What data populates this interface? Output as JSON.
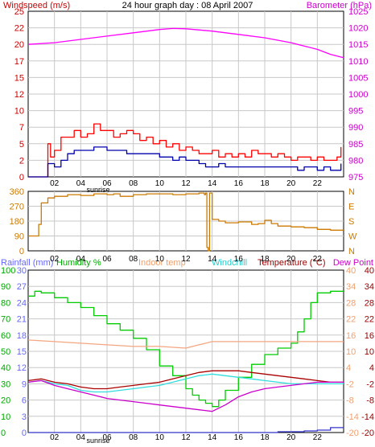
{
  "title": "24 hour graph day : 08 April 2007",
  "x_ticks": [
    "02",
    "04",
    "06",
    "08",
    "10",
    "12",
    "14",
    "16",
    "18",
    "20",
    "22"
  ],
  "sunrise_label": "sunrise",
  "colors": {
    "wind": "#ff0000",
    "gust": "#ff0000",
    "windavg": "#0000aa",
    "baro": "#ff00ff",
    "winddir": "#cc7a00",
    "rain": "#3333cc",
    "humidity": "#00cc00",
    "indoor": "#f4a680",
    "windchill": "#33dddd",
    "temperature": "#aa0000",
    "dewpoint": "#cc00cc",
    "label_red": "#cc0000",
    "label_mag": "#cc00cc",
    "label_blue": "#6666ff",
    "label_green": "#00aa00",
    "label_orange": "#cc7a00",
    "label_peach": "#f0a070",
    "label_cyan": "#22cccc",
    "label_maroon": "#990000",
    "grid": "#c8c8c8"
  },
  "chart_data": [
    {
      "type": "line",
      "title": "24 hour graph day : 08 April 2007",
      "left_axis_label": "Windspeed (m/s)",
      "right_axis_label": "Barometer (hPa)",
      "left_ticks": [
        "0",
        "2",
        "5",
        "7",
        "10",
        "12",
        "15",
        "17",
        "20",
        "22",
        "25"
      ],
      "right_ticks": [
        "975",
        "980",
        "985",
        "990",
        "995",
        "1000",
        "1005",
        "1010",
        "1015",
        "1020",
        "1025"
      ],
      "ylim_left": [
        0,
        25
      ],
      "ylim_right": [
        975,
        1025
      ],
      "grid": true,
      "series": [
        {
          "key": "wind_gust",
          "axis": "left",
          "color_key": "gust",
          "x": [
            0,
            1.3,
            1.5,
            1.7,
            2,
            2.5,
            3,
            3.5,
            4,
            4.5,
            5,
            5.5,
            6,
            6.5,
            7,
            7.5,
            8,
            8.5,
            9,
            9.5,
            10,
            10.5,
            11,
            11.5,
            12,
            12.5,
            13,
            13.5,
            14,
            14.5,
            15,
            15.5,
            16,
            16.5,
            17,
            17.5,
            18,
            18.5,
            19,
            19.5,
            20,
            20.5,
            21,
            21.5,
            22,
            22.5,
            23,
            23.5,
            23.8
          ],
          "y": [
            0,
            0,
            5,
            3,
            4,
            6,
            6,
            7,
            6,
            6.5,
            8,
            7,
            7,
            6,
            6.5,
            7,
            6.5,
            5.5,
            6,
            5,
            5.5,
            4.5,
            5,
            4,
            4.5,
            4,
            3.5,
            3.5,
            4,
            3,
            3.5,
            3,
            3.5,
            3,
            4,
            3.5,
            3.5,
            3,
            3.5,
            3,
            2.5,
            3,
            3,
            2.5,
            3,
            2.5,
            2.5,
            3,
            4.5
          ]
        },
        {
          "key": "wind_avg",
          "axis": "left",
          "color_key": "windavg",
          "x": [
            0,
            1.3,
            1.5,
            2,
            2.5,
            3,
            3.5,
            4,
            4.5,
            5,
            5.5,
            6,
            6.5,
            7,
            7.5,
            8,
            8.5,
            9,
            9.5,
            10,
            10.5,
            11,
            11.5,
            12,
            12.5,
            13,
            13.5,
            14,
            14.5,
            15,
            15.5,
            16,
            16.5,
            17,
            17.5,
            18,
            18.5,
            19,
            19.5,
            20,
            20.5,
            21,
            21.5,
            22,
            22.5,
            23,
            23.5,
            23.8
          ],
          "y": [
            0,
            0,
            2,
            1.5,
            2.5,
            3.5,
            4,
            4,
            4,
            4.5,
            4.5,
            4,
            4,
            4,
            3.5,
            3.5,
            3.5,
            3.5,
            3.5,
            3,
            3,
            2.5,
            3,
            2.5,
            2.5,
            2,
            1.5,
            1.5,
            2,
            1.5,
            1.5,
            1.5,
            1.5,
            1.5,
            1.5,
            1.5,
            1.5,
            1.5,
            1.5,
            1.5,
            1,
            1.5,
            1.5,
            1,
            1.5,
            1,
            1,
            2
          ]
        },
        {
          "key": "barometer",
          "axis": "right",
          "color_key": "baro",
          "x": [
            0,
            2,
            4,
            6,
            8,
            10,
            11,
            12,
            14,
            16,
            18,
            20,
            22,
            23,
            24
          ],
          "y": [
            1015,
            1015.5,
            1016.5,
            1017.5,
            1018.5,
            1019.5,
            1019.8,
            1019.7,
            1019,
            1018,
            1017,
            1015.5,
            1013.5,
            1012,
            1011
          ]
        }
      ]
    },
    {
      "type": "line",
      "left_ticks": [
        "0",
        "90",
        "180",
        "270",
        "360"
      ],
      "right_ticks": [
        "N",
        "W",
        "S",
        "E",
        "N"
      ],
      "ylim": [
        0,
        360
      ],
      "grid": true,
      "series": [
        {
          "key": "wind_direction",
          "color_key": "winddir",
          "x": [
            0,
            0.6,
            0.8,
            1,
            1.5,
            2,
            3,
            4,
            5,
            6,
            6.5,
            7,
            8,
            9,
            10,
            11,
            12,
            13,
            13.4,
            13.5,
            13.6,
            13.7,
            13.8,
            14,
            14.5,
            15,
            16,
            17,
            17.5,
            18,
            18.5,
            19,
            20,
            21,
            22,
            23,
            24
          ],
          "y": [
            90,
            90,
            160,
            290,
            320,
            330,
            340,
            335,
            345,
            340,
            345,
            330,
            340,
            345,
            345,
            340,
            345,
            350,
            340,
            350,
            20,
            0,
            350,
            190,
            180,
            170,
            175,
            160,
            165,
            185,
            165,
            150,
            145,
            140,
            130,
            125,
            125
          ]
        }
      ]
    },
    {
      "type": "line",
      "legend": [
        "Rainfall (mm)",
        "Humidity %",
        "Indoor temp",
        "Windchill",
        "Temperature (°C)",
        "Dew Point"
      ],
      "ticks_rain": [
        "0",
        "3",
        "6",
        "9",
        "12",
        "15",
        "18",
        "21",
        "24",
        "27",
        "30"
      ],
      "ticks_hum": [
        "0",
        "10",
        "20",
        "30",
        "40",
        "50",
        "60",
        "70",
        "80",
        "90",
        "100"
      ],
      "ticks_temp_inner": [
        "-20",
        "-14",
        "-8",
        "-2",
        "4",
        "10",
        "16",
        "22",
        "28",
        "34",
        "40"
      ],
      "ticks_temp_outer": [
        "-20",
        "-14",
        "-8",
        "-2",
        "4",
        "10",
        "16",
        "22",
        "28",
        "34",
        "40"
      ],
      "ylim_percent": [
        0,
        100
      ],
      "ylim_temp": [
        -20,
        40
      ],
      "grid": true,
      "series": [
        {
          "key": "humidity",
          "axis": "percent",
          "color_key": "humidity",
          "x": [
            0,
            0.5,
            1,
            2,
            3,
            4,
            5,
            6,
            7,
            8,
            9,
            10,
            11,
            12,
            12.5,
            13,
            13.5,
            14,
            14.5,
            15,
            16,
            17,
            18,
            19,
            20,
            20.5,
            21,
            21.5,
            22,
            22.5,
            23,
            24
          ],
          "y": [
            84,
            87,
            86,
            83,
            80,
            77,
            72,
            67,
            63,
            58,
            51,
            41,
            35,
            27,
            23,
            20,
            18,
            16,
            20,
            26,
            34,
            42,
            48,
            52,
            55,
            62,
            70,
            80,
            86,
            86,
            87,
            87
          ]
        },
        {
          "key": "indoor_temp",
          "axis": "percent",
          "color_key": "indoor",
          "x": [
            0,
            2,
            4,
            6,
            8,
            10,
            12,
            13,
            14,
            16,
            18,
            20,
            22,
            24
          ],
          "y": [
            57,
            56,
            55,
            54,
            53,
            53,
            52,
            54,
            56,
            56,
            56,
            56,
            56,
            56
          ]
        },
        {
          "key": "temperature",
          "axis": "percent",
          "color_key": "temperature",
          "x": [
            0,
            1,
            2,
            3,
            4,
            5,
            6,
            7,
            8,
            9,
            10,
            11,
            12,
            13,
            14,
            15,
            16,
            17,
            18,
            19,
            20,
            21,
            22,
            23,
            24
          ],
          "y": [
            32,
            33,
            31,
            30,
            28,
            27,
            27,
            28,
            29,
            30,
            31,
            33,
            35,
            37,
            38,
            38,
            38,
            37,
            36,
            35,
            34,
            33,
            32,
            31,
            31
          ]
        },
        {
          "key": "windchill",
          "axis": "percent",
          "color_key": "windchill",
          "x": [
            0,
            1,
            2,
            3,
            4,
            5,
            6,
            7,
            8,
            9,
            10,
            11,
            12,
            13,
            14,
            15,
            16,
            17,
            18,
            19,
            20,
            21,
            22,
            23,
            24
          ],
          "y": [
            31,
            32,
            30,
            29,
            26,
            25,
            25,
            26,
            27,
            28,
            29,
            31,
            33,
            35,
            36,
            35,
            34,
            33,
            32,
            31,
            30,
            30,
            30,
            30,
            30
          ]
        },
        {
          "key": "dew_point",
          "axis": "percent",
          "color_key": "dewpoint",
          "x": [
            0,
            1,
            2,
            3,
            4,
            5,
            6,
            7,
            8,
            9,
            10,
            11,
            12,
            13,
            14,
            15,
            16,
            17,
            18,
            19,
            20,
            21,
            22,
            23,
            24
          ],
          "y": [
            31,
            32,
            29,
            27,
            25,
            23,
            21,
            20,
            19,
            18,
            17,
            16,
            15,
            14,
            13,
            17,
            22,
            25,
            27,
            28,
            29,
            30,
            31,
            31,
            31
          ]
        },
        {
          "key": "rainfall",
          "axis": "percent",
          "color_key": "rain",
          "x": [
            0,
            19,
            21,
            22,
            23,
            24
          ],
          "y": [
            0,
            0.5,
            1,
            1.5,
            3,
            3
          ]
        }
      ]
    }
  ]
}
